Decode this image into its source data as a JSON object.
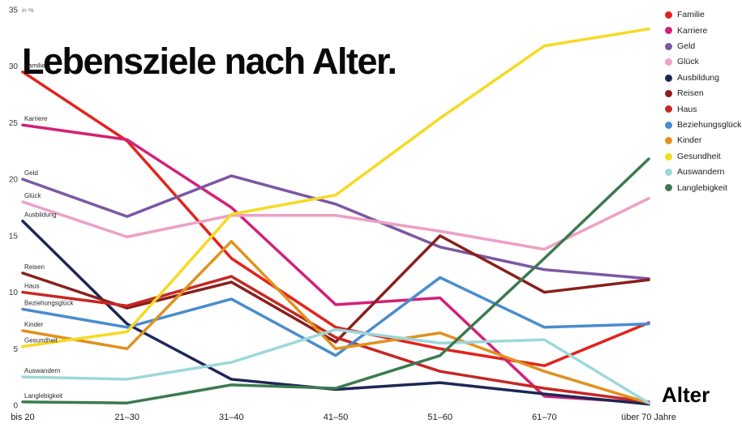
{
  "title": "Lebensziele nach Alter.",
  "y_axis_note": "in %",
  "x_axis_title": "Alter",
  "chart_data": {
    "type": "line",
    "title": "Lebensziele nach Alter.",
    "xlabel": "Alter",
    "ylabel": "in %",
    "ylim": [
      0,
      35
    ],
    "yticks": [
      0,
      5,
      10,
      15,
      20,
      25,
      30,
      35
    ],
    "grid": false,
    "legend_position": "top-right",
    "categories": [
      "bis 20",
      "21–30",
      "31–40",
      "41–50",
      "51–60",
      "61–70",
      "über 70 Jahre"
    ],
    "series": [
      {
        "name": "Familie",
        "color": "#e2231c",
        "values": [
          29.5,
          23.4,
          13.0,
          6.9,
          5.0,
          3.5,
          7.3
        ]
      },
      {
        "name": "Karriere",
        "color": "#d42077",
        "values": [
          24.8,
          23.5,
          17.5,
          8.9,
          9.5,
          0.8,
          0.2
        ]
      },
      {
        "name": "Geld",
        "color": "#7a58a3",
        "values": [
          20.0,
          16.7,
          20.3,
          17.8,
          14.0,
          12.0,
          11.2
        ]
      },
      {
        "name": "Glück",
        "color": "#eea0c5",
        "values": [
          18.0,
          14.9,
          16.8,
          16.8,
          15.4,
          13.8,
          18.3
        ]
      },
      {
        "name": "Ausbildung",
        "color": "#1d2756",
        "values": [
          16.3,
          7.2,
          2.3,
          1.4,
          2.0,
          1.0,
          0.1
        ]
      },
      {
        "name": "Reisen",
        "color": "#8a1f1a",
        "values": [
          11.7,
          8.6,
          10.9,
          5.6,
          15.0,
          10.0,
          11.1
        ]
      },
      {
        "name": "Haus",
        "color": "#c52824",
        "values": [
          10.0,
          8.8,
          11.4,
          6.0,
          3.0,
          1.5,
          0.3
        ]
      },
      {
        "name": "Beziehungsglück",
        "color": "#4a8cce",
        "values": [
          8.5,
          6.9,
          9.4,
          4.4,
          11.3,
          6.9,
          7.2
        ]
      },
      {
        "name": "Kinder",
        "color": "#e0921f",
        "values": [
          6.6,
          5.0,
          14.5,
          5.0,
          6.4,
          3.0,
          0.2
        ]
      },
      {
        "name": "Gesundheit",
        "color": "#f6da23",
        "values": [
          5.2,
          6.5,
          16.9,
          18.6,
          25.4,
          31.8,
          33.3
        ]
      },
      {
        "name": "Auswandern",
        "color": "#9cd8da",
        "values": [
          2.5,
          2.3,
          3.8,
          6.7,
          5.5,
          5.8,
          0.2
        ]
      },
      {
        "name": "Langlebigkeit",
        "color": "#3c7a50",
        "values": [
          0.3,
          0.2,
          1.8,
          1.5,
          4.4,
          13.0,
          21.8
        ]
      }
    ]
  }
}
